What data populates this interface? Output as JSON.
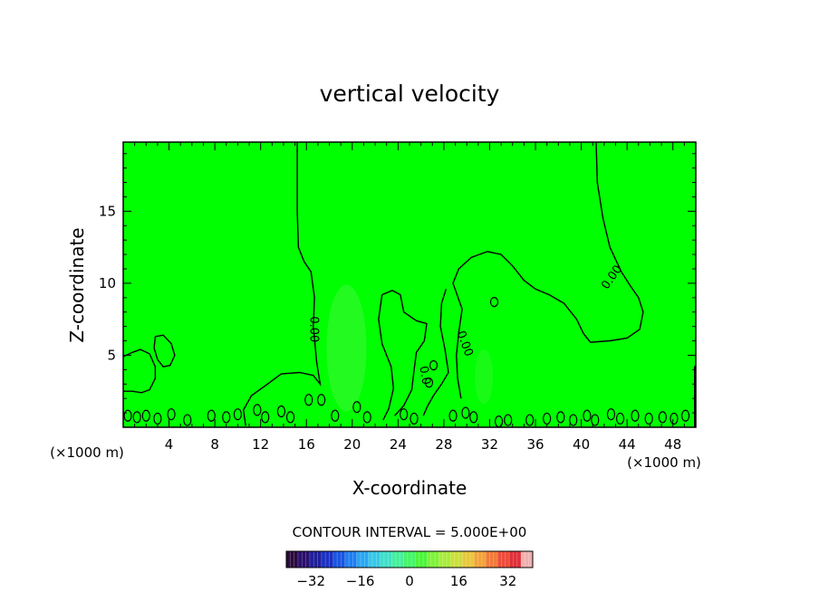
{
  "chart_data": {
    "type": "heatmap",
    "title": "vertical velocity",
    "xlabel": "X-coordinate",
    "ylabel": "Z-coordinate",
    "x_unit_left": "(×1000 m)",
    "x_unit_right": "(×1000 m)",
    "xlim": [
      0,
      50
    ],
    "ylim": [
      0,
      19.8
    ],
    "x_ticks": [
      4,
      8,
      12,
      16,
      20,
      24,
      28,
      32,
      36,
      40,
      44,
      48
    ],
    "y_ticks": [
      5,
      10,
      15
    ],
    "contour_interval_text": "CONTOUR INTERVAL = 5.000E+00",
    "contour_labels": [
      {
        "text": "0.00",
        "x": 16.6,
        "y": 6.8,
        "rotation": 90
      },
      {
        "text": "0.0",
        "x": 26.3,
        "y": 3.6,
        "rotation": 80
      },
      {
        "text": "0.00",
        "x": 29.8,
        "y": 5.8,
        "rotation": 70
      },
      {
        "text": "0.00",
        "x": 42.7,
        "y": 10.4,
        "rotation": -55
      }
    ],
    "field_note_colors": {
      "background": "#00ff00",
      "positive_blob": "#3ff53a",
      "contour": "#000000"
    },
    "colorbar": {
      "ticks": [
        -32,
        -16,
        0,
        16,
        32
      ],
      "range": [
        -40,
        40
      ],
      "colors": [
        "#2b0a3d",
        "#2a0f6e",
        "#1f1f9a",
        "#1a30c2",
        "#1a55e0",
        "#1f7ef0",
        "#2aa6f2",
        "#35c8e8",
        "#3fe0c8",
        "#45ef9c",
        "#45f56a",
        "#4cf53c",
        "#7ef23a",
        "#a8ec3a",
        "#ccdf3a",
        "#e8c83a",
        "#f2a33a",
        "#f27a3a",
        "#ee4c3a",
        "#e0303a",
        "#f0b0b0"
      ]
    }
  }
}
